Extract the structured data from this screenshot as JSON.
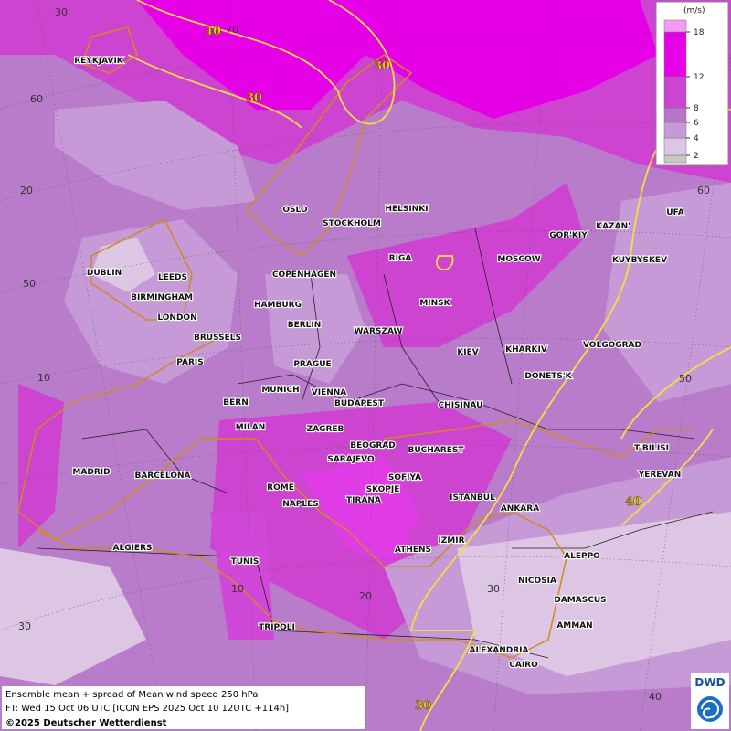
{
  "header": {
    "units": "(m/s)"
  },
  "legend": {
    "levels": [
      2,
      4,
      6,
      8,
      12,
      18
    ],
    "colors": [
      "#c8c8c8",
      "#dcc6e4",
      "#c69ad6",
      "#b874c8",
      "#cc44d0",
      "#e600e6",
      "#f49cf4"
    ]
  },
  "map": {
    "cities": [
      "REYKJAVIK",
      "OSLO",
      "STOCKHOLM",
      "HELSINKI",
      "RIGA",
      "MOSCOW",
      "GOR'KIY",
      "KAZAN'",
      "UFA",
      "KUYBYSKEV",
      "DUBLIN",
      "LEEDS",
      "BIRMINGHAM",
      "LONDON",
      "COPENHAGEN",
      "HAMBURG",
      "BERLIN",
      "MINSK",
      "WARSZAW",
      "BRUSSELS",
      "PARIS",
      "PRAGUE",
      "KIEV",
      "KHARKIV",
      "VOLGOGRAD",
      "DONETS'K",
      "MUNICH",
      "VIENNA",
      "BERN",
      "BUDAPEST",
      "CHISINAU",
      "MILAN",
      "ZAGREB",
      "BEOGRAD",
      "BUCHAREST",
      "T'BILISI",
      "SARAJEVO",
      "MADRID",
      "BARCELONA",
      "SOFIYA",
      "YEREVAN",
      "ROME",
      "SKOPJE",
      "TIRANA",
      "ISTANBUL",
      "NAPLES",
      "ANKARA",
      "ALGIERS",
      "IZMIR",
      "ATHENS",
      "ALEPPO",
      "TUNIS",
      "NICOSIA",
      "DAMASCUS",
      "TRIPOLI",
      "AMMAN",
      "ALEXANDRIA",
      "CAIRO"
    ],
    "grid_labels": [
      "30",
      "70",
      "60",
      "20",
      "50",
      "10",
      "30",
      "60",
      "50",
      "40",
      "30",
      "20",
      "10"
    ],
    "contour_labels": [
      "40",
      "30",
      "30",
      "40",
      "30"
    ]
  },
  "footer": {
    "line1": "Ensemble mean + spread of Mean wind speed 250 hPa",
    "line2": "FT: Wed 15 Oct 06 UTC [ICON EPS 2025 Oct 10 12UTC +114h]",
    "line3": "©2025 Deutscher Wetterdienst"
  },
  "logo": {
    "text": "DWD"
  }
}
